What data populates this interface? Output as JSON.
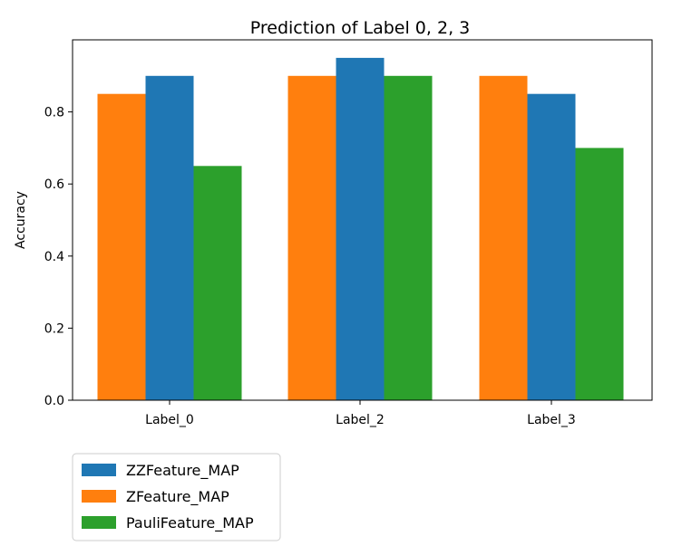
{
  "chart_data": {
    "type": "bar",
    "title": "Prediction of Label 0, 2, 3",
    "xlabel": "",
    "ylabel": "Accuracy",
    "categories": [
      "Label_0",
      "Label_2",
      "Label_3"
    ],
    "ylim": [
      0,
      1.0
    ],
    "yticks": [
      0.0,
      0.2,
      0.4,
      0.6,
      0.8
    ],
    "ytick_labels": [
      "0.0",
      "0.2",
      "0.4",
      "0.6",
      "0.8"
    ],
    "grid": false,
    "legend_placement": "below-left",
    "series": [
      {
        "name": "ZFeature_MAP",
        "color": "#ff7f0e",
        "values": [
          0.85,
          0.9,
          0.9
        ]
      },
      {
        "name": "ZZFeature_MAP",
        "color": "#1f77b4",
        "values": [
          0.9,
          0.95,
          0.85
        ]
      },
      {
        "name": "PauliFeature_MAP",
        "color": "#2ca02c",
        "values": [
          0.65,
          0.9,
          0.7
        ]
      }
    ],
    "legend_order": [
      "ZZFeature_MAP",
      "ZFeature_MAP",
      "PauliFeature_MAP"
    ]
  }
}
